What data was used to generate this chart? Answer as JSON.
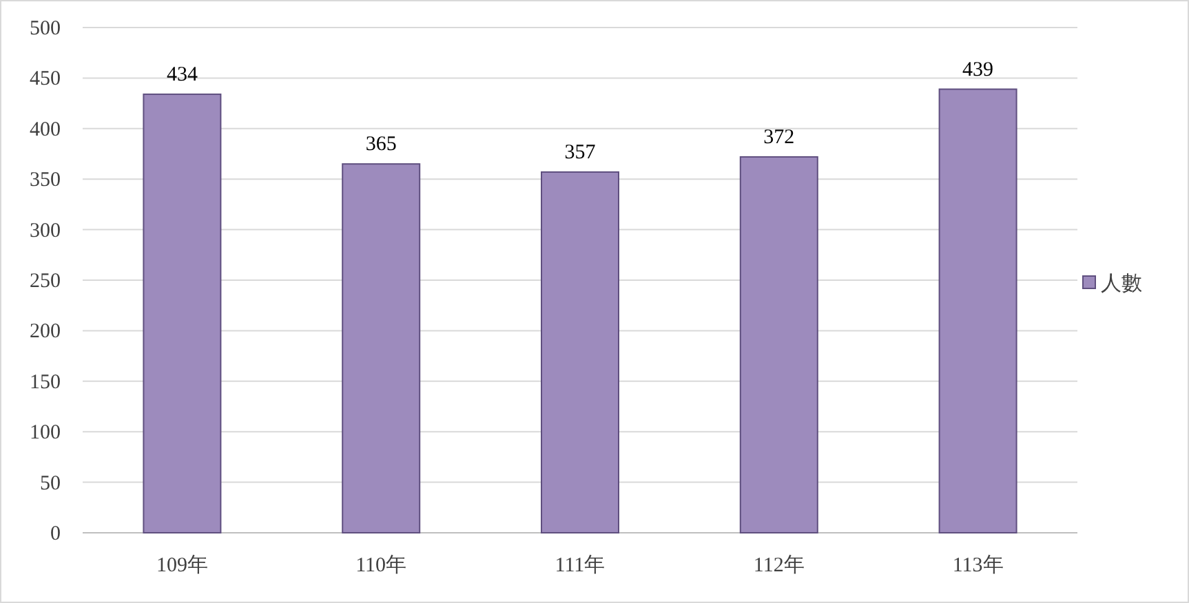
{
  "chart_data": {
    "type": "bar",
    "categories": [
      "109年",
      "110年",
      "111年",
      "112年",
      "113年"
    ],
    "series": [
      {
        "name": "人數",
        "color": "#9d8bbd",
        "values": [
          434,
          365,
          357,
          372,
          439
        ]
      }
    ],
    "ylim": [
      0,
      500
    ],
    "yticks": [
      0,
      50,
      100,
      150,
      200,
      250,
      300,
      350,
      400,
      450,
      500
    ],
    "grid": "y",
    "legend": "right",
    "data_labels": true
  }
}
